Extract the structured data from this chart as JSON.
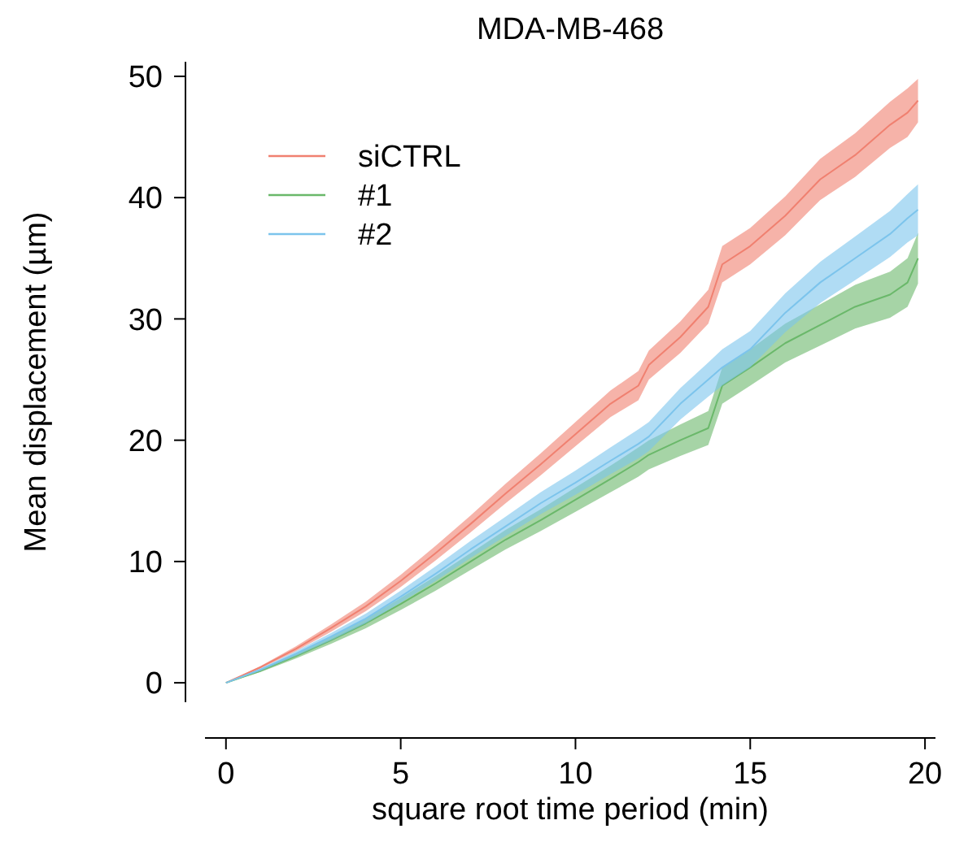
{
  "chart_data": {
    "type": "line",
    "title": "MDA-MB-468",
    "xlabel": "square root time period (min)",
    "ylabel": "Mean displacement (µm)",
    "x": [
      0,
      1,
      2,
      3,
      4,
      5,
      6,
      7,
      8,
      9,
      10,
      11,
      11.8,
      12.1,
      13,
      13.8,
      14.2,
      15,
      16,
      17,
      18,
      19,
      19.5,
      19.8
    ],
    "xlim": [
      -0.6,
      20.3
    ],
    "ylim": [
      -1.6,
      51.2
    ],
    "xticks": [
      0,
      5,
      10,
      15,
      20
    ],
    "yticks": [
      0,
      10,
      20,
      30,
      40,
      50
    ],
    "grid": false,
    "legend": "top left",
    "marker": "none",
    "line_style": "solid",
    "series": [
      {
        "name": "siCTRL",
        "color": "#f08070",
        "values": [
          0,
          1.3,
          2.8,
          4.5,
          6.3,
          8.4,
          10.7,
          13.1,
          15.6,
          18,
          20.5,
          23,
          24.5,
          26.2,
          28.5,
          31,
          34.5,
          36,
          38.5,
          41.5,
          43.5,
          46,
          47,
          48
        ],
        "lower": [
          0,
          1.2,
          2.6,
          4.2,
          5.9,
          7.9,
          10.1,
          12.4,
          14.8,
          17.1,
          19.5,
          21.9,
          23.3,
          25,
          27.2,
          29.6,
          33,
          34.5,
          36.9,
          39.8,
          41.7,
          44.1,
          45,
          46.2
        ],
        "upper": [
          0,
          1.4,
          3,
          4.8,
          6.7,
          8.9,
          11.3,
          13.8,
          16.4,
          18.9,
          21.5,
          24.1,
          25.7,
          27.4,
          29.8,
          32.4,
          36,
          37.5,
          40.1,
          43.2,
          45.3,
          47.9,
          49,
          49.8
        ]
      },
      {
        "name": "#1",
        "color": "#6ab86a",
        "values": [
          0,
          1,
          2.2,
          3.5,
          4.9,
          6.5,
          8.2,
          10,
          11.8,
          13.4,
          15.1,
          16.8,
          18.2,
          18.8,
          20,
          21,
          24.5,
          26,
          28,
          29.5,
          31,
          32,
          33,
          35
        ],
        "lower": [
          0,
          0.9,
          2,
          3.2,
          4.5,
          6,
          7.6,
          9.3,
          11,
          12.5,
          14.1,
          15.7,
          17,
          17.6,
          18.7,
          19.6,
          23,
          24.5,
          26.4,
          27.8,
          29.2,
          30.1,
          31,
          32.9
        ],
        "upper": [
          0,
          1.1,
          2.4,
          3.8,
          5.3,
          7,
          8.8,
          10.7,
          12.6,
          14.3,
          16.1,
          17.9,
          19.4,
          20,
          21.3,
          22.4,
          26,
          27.5,
          29.6,
          31.2,
          32.8,
          33.9,
          35,
          37.1
        ]
      },
      {
        "name": "#2",
        "color": "#7cc4ec",
        "values": [
          0,
          1.1,
          2.4,
          3.8,
          5.3,
          7.1,
          9,
          11,
          12.9,
          14.8,
          16.5,
          18.3,
          19.7,
          20.3,
          23,
          25,
          26,
          27.5,
          30.5,
          33,
          35,
          37,
          38.3,
          39
        ],
        "lower": [
          0,
          1,
          2.2,
          3.5,
          4.9,
          6.6,
          8.4,
          10.3,
          12.1,
          13.9,
          15.5,
          17.2,
          18.5,
          19.1,
          21.7,
          23.6,
          24.5,
          26,
          28.9,
          31.3,
          33.2,
          35.1,
          36.3,
          36.9
        ],
        "upper": [
          0,
          1.2,
          2.6,
          4.1,
          5.7,
          7.6,
          9.6,
          11.7,
          13.7,
          15.7,
          17.5,
          19.4,
          20.9,
          21.5,
          24.3,
          26.4,
          27.5,
          29,
          32.1,
          34.7,
          36.8,
          38.9,
          40.3,
          41.1
        ]
      }
    ]
  }
}
